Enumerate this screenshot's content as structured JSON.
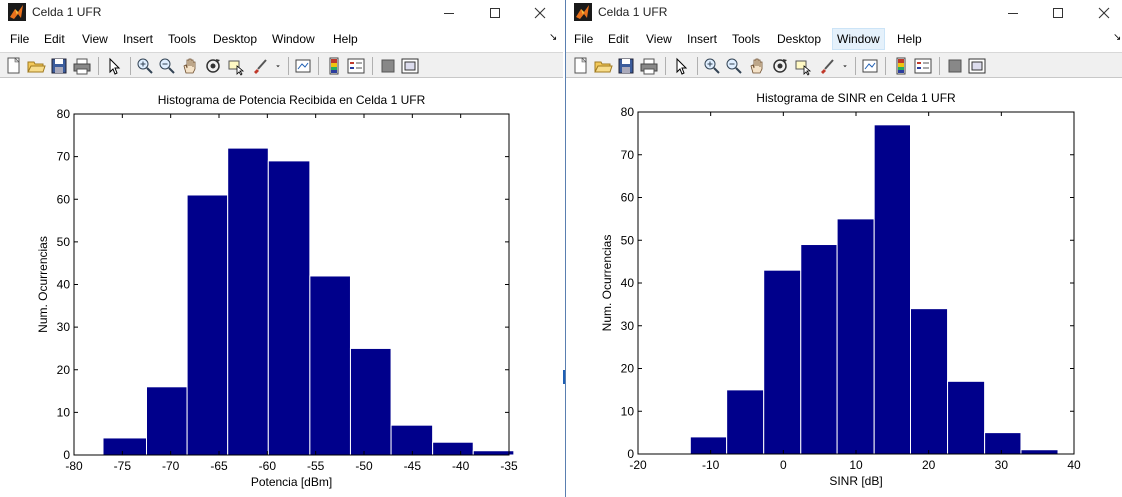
{
  "windows": [
    {
      "id": "left",
      "title": "Celda 1 UFR",
      "menus": [
        "File",
        "Edit",
        "View",
        "Insert",
        "Tools",
        "Desktop",
        "Window",
        "Help"
      ],
      "active_menu": "",
      "menu_extra": "↘",
      "chart_data": {
        "type": "bar",
        "title": "Histograma de Potencia Recibida en Celda 1 UFR",
        "xlabel": "Potencia [dBm]",
        "ylabel": "Num. Ocurrencias",
        "xlim": [
          -80,
          -35
        ],
        "ylim": [
          0,
          80
        ],
        "xticks": [
          -80,
          -75,
          -70,
          -65,
          -60,
          -55,
          -50,
          -45,
          -40,
          -35
        ],
        "yticks": [
          0,
          10,
          20,
          30,
          40,
          50,
          60,
          70,
          80
        ],
        "bar_edges": [
          -77.0,
          -72.5,
          -68.3,
          -64.1,
          -59.9,
          -55.6,
          -51.4,
          -47.2,
          -42.9,
          -38.7,
          -34.5
        ],
        "values": [
          4,
          16,
          61,
          72,
          69,
          42,
          25,
          7,
          3,
          1
        ],
        "bar_color": "#00008b",
        "grid": false
      }
    },
    {
      "id": "right",
      "title": "Celda 1 UFR",
      "menus": [
        "File",
        "Edit",
        "View",
        "Insert",
        "Tools",
        "Desktop",
        "Window",
        "Help"
      ],
      "active_menu": "Window",
      "menu_extra": "↘",
      "chart_data": {
        "type": "bar",
        "title": "Histograma de SINR en Celda 1 UFR",
        "xlabel": "SINR [dB]",
        "ylabel": "Num. Ocurrencias",
        "xlim": [
          -20,
          40
        ],
        "ylim": [
          0,
          80
        ],
        "xticks": [
          -20,
          -10,
          0,
          10,
          20,
          30,
          40
        ],
        "yticks": [
          0,
          10,
          20,
          30,
          40,
          50,
          60,
          70,
          80
        ],
        "bar_edges": [
          -17.9,
          -12.8,
          -7.8,
          -2.7,
          2.4,
          7.4,
          12.5,
          17.5,
          22.6,
          27.7,
          32.7,
          37.8
        ],
        "values": [
          0,
          4,
          15,
          43,
          49,
          55,
          77,
          34,
          17,
          5,
          1
        ],
        "bar_color": "#00008b",
        "grid": false
      }
    }
  ]
}
